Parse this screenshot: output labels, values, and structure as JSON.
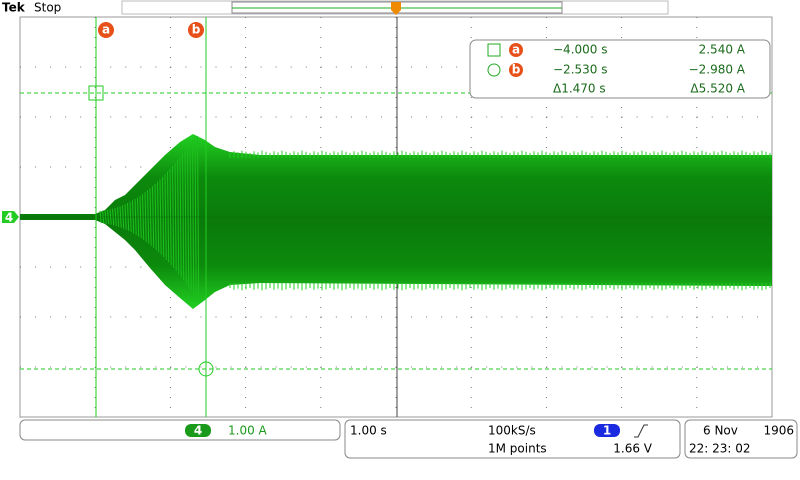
{
  "header": {
    "brand": "Tek",
    "status": "Stop"
  },
  "cursors": {
    "a": {
      "label": "a",
      "time": "−4.000 s",
      "value": "2.540 A"
    },
    "b": {
      "label": "b",
      "time": "−2.530 s",
      "value": "−2.980 A"
    },
    "delta": {
      "time": "Δ1.470 s",
      "value": "Δ5.520 A"
    }
  },
  "channel": {
    "number": "4",
    "scale": "1.00 A"
  },
  "timebase": {
    "scale": "1.00 s",
    "sample_rate": "100kS/s",
    "record_length": "1M points"
  },
  "trigger": {
    "source": "1",
    "level": "1.66 V"
  },
  "datetime": {
    "date": "6 Nov",
    "year": "1906",
    "time": "22: 23: 02"
  }
}
